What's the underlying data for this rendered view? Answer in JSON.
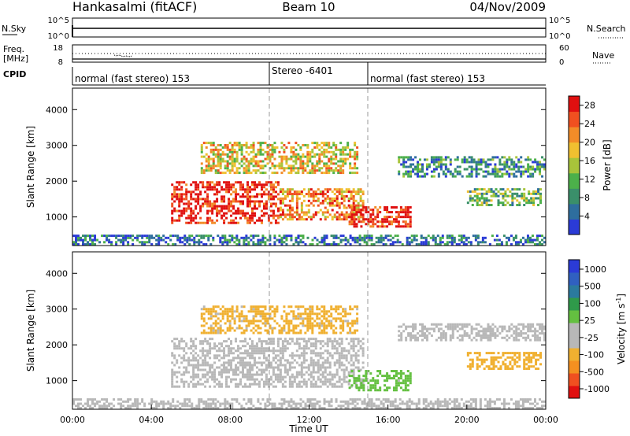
{
  "header": {
    "title_left": "Hankasalmi (fitACF)",
    "title_center": "Beam 10",
    "title_right": "04/Nov/2009"
  },
  "top_panels": {
    "nsky_label": "N.Sky",
    "nsky_ticks": [
      "10^5",
      "10^0"
    ],
    "nsky_right_ticks": [
      "10^5",
      "10^0"
    ],
    "nsearch_label": "N.Search",
    "freq_label_line1": "Freq.",
    "freq_label_line2": "[MHz]",
    "freq_ticks": [
      "18",
      "8"
    ],
    "nave_ticks": [
      "60",
      "0"
    ],
    "nave_label": "Nave",
    "cpid_label": "CPID",
    "cpid_segments": [
      {
        "label": "normal (fast stereo) 153",
        "start_h": 0,
        "end_h": 10
      },
      {
        "label": "Stereo -6401",
        "start_h": 10,
        "end_h": 15
      },
      {
        "label": "normal (fast stereo) 153",
        "start_h": 15,
        "end_h": 24
      }
    ]
  },
  "colors": {
    "power_scale": [
      "#2b3bd6",
      "#2e6e9e",
      "#3a8f6a",
      "#4cb04a",
      "#a8c43a",
      "#f0c030",
      "#f28c28",
      "#f05020",
      "#e01010"
    ],
    "velocity_scale": [
      "#e01010",
      "#f05020",
      "#f49020",
      "#f0b030",
      "#b8b8b8",
      "#b8b8b8",
      "#64c040",
      "#2f9a4a",
      "#2b7a9e",
      "#3060c0",
      "#2b3bd6"
    ],
    "ground_scatter": "#b8b8b8"
  },
  "chart_data": [
    {
      "type": "heatmap",
      "title": "Power",
      "xlabel": "Time UT",
      "ylabel": "Slant Range [km]",
      "x_ticks": [
        "00:00",
        "04:00",
        "08:00",
        "12:00",
        "16:00",
        "20:00",
        "00:00"
      ],
      "xlim_hours": [
        0,
        24
      ],
      "y_ticks": [
        1000,
        2000,
        3000,
        4000
      ],
      "ylim": [
        200,
        4600
      ],
      "colorbar_label": "Power [dB]",
      "colorbar_ticks": [
        4,
        8,
        12,
        16,
        20,
        24,
        28
      ],
      "colorbar_range": [
        0,
        30
      ],
      "echo_regions": [
        {
          "start_h": 5.0,
          "end_h": 10.5,
          "range_min": 800,
          "range_max": 2000,
          "power_db": 28
        },
        {
          "start_h": 10.5,
          "end_h": 14.8,
          "range_min": 900,
          "range_max": 1800,
          "power_db": 22
        },
        {
          "start_h": 14.0,
          "end_h": 17.2,
          "range_min": 700,
          "range_max": 1300,
          "power_db": 28
        },
        {
          "start_h": 6.5,
          "end_h": 14.5,
          "range_min": 2200,
          "range_max": 3100,
          "power_db": 18
        },
        {
          "start_h": 16.5,
          "end_h": 24.0,
          "range_min": 2100,
          "range_max": 2700,
          "power_db": 8
        },
        {
          "start_h": 20.0,
          "end_h": 23.8,
          "range_min": 1300,
          "range_max": 1800,
          "power_db": 12
        },
        {
          "start_h": 0.0,
          "end_h": 24.0,
          "range_min": 200,
          "range_max": 500,
          "power_db": 6
        }
      ]
    },
    {
      "type": "heatmap",
      "title": "Velocity",
      "xlabel": "Time UT",
      "ylabel": "Slant Range [km]",
      "x_ticks": [
        "00:00",
        "04:00",
        "08:00",
        "12:00",
        "16:00",
        "20:00",
        "00:00"
      ],
      "xlim_hours": [
        0,
        24
      ],
      "y_ticks": [
        1000,
        2000,
        3000,
        4000
      ],
      "ylim": [
        200,
        4600
      ],
      "colorbar_label": "Velocity [m s",
      "colorbar_label_sup": "-1",
      "colorbar_ticks": [
        "1000",
        "500",
        "100",
        "25",
        "-25",
        "-100",
        "-500",
        "-1000"
      ],
      "echo_regions": [
        {
          "start_h": 5.0,
          "end_h": 14.8,
          "range_min": 800,
          "range_max": 2200,
          "velocity": "ground"
        },
        {
          "start_h": 14.0,
          "end_h": 17.2,
          "range_min": 700,
          "range_max": 1300,
          "velocity": 60
        },
        {
          "start_h": 6.5,
          "end_h": 14.5,
          "range_min": 2300,
          "range_max": 3100,
          "velocity": -200
        },
        {
          "start_h": 16.5,
          "end_h": 24.0,
          "range_min": 2100,
          "range_max": 2600,
          "velocity": "ground"
        },
        {
          "start_h": 20.0,
          "end_h": 23.8,
          "range_min": 1300,
          "range_max": 1800,
          "velocity": -300
        },
        {
          "start_h": 0.0,
          "end_h": 24.0,
          "range_min": 200,
          "range_max": 500,
          "velocity": "ground"
        }
      ]
    }
  ]
}
